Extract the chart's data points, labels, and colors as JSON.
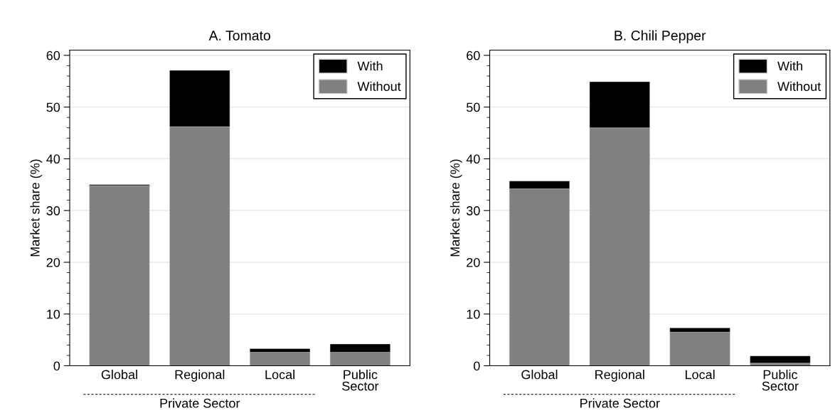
{
  "chart_data": [
    {
      "type": "bar",
      "title": "A. Tomato",
      "ylabel": "Market share (%)",
      "categories": [
        "Global",
        "Regional",
        "Local",
        "Public\nSector"
      ],
      "stacked": true,
      "series": [
        {
          "name": "Without",
          "color": "#808080",
          "values": [
            34.8,
            46.2,
            2.6,
            2.6
          ]
        },
        {
          "name": "With",
          "color": "#000000",
          "values": [
            0.2,
            10.9,
            0.7,
            1.6
          ]
        }
      ],
      "ylim": [
        0,
        61
      ],
      "yticks": [
        0,
        10,
        20,
        30,
        40,
        50,
        60
      ],
      "grid": "y",
      "legend": "top right",
      "annotations": [
        "Private Sector"
      ]
    },
    {
      "type": "bar",
      "title": "B. Chili Pepper",
      "ylabel": "Market share (%)",
      "categories": [
        "Global",
        "Regional",
        "Local",
        "Public\nSector"
      ],
      "stacked": true,
      "series": [
        {
          "name": "Without",
          "color": "#808080",
          "values": [
            34.2,
            46.0,
            6.5,
            0.5
          ]
        },
        {
          "name": "With",
          "color": "#000000",
          "values": [
            1.5,
            8.9,
            0.8,
            1.4
          ]
        }
      ],
      "ylim": [
        0,
        61
      ],
      "yticks": [
        0,
        10,
        20,
        30,
        40,
        50,
        60
      ],
      "grid": "y",
      "legend": "top right",
      "annotations": [
        "Private Sector"
      ]
    }
  ]
}
